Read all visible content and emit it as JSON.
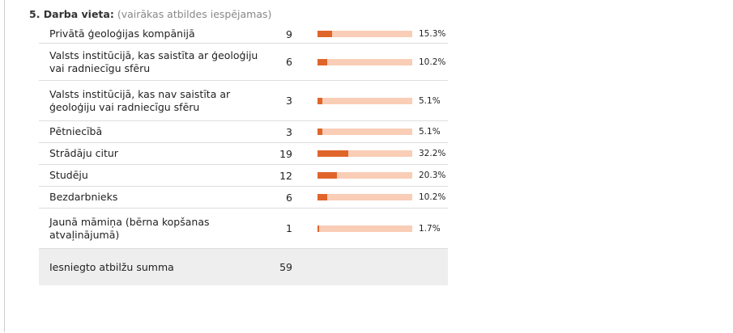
{
  "chart_data": {
    "type": "bar",
    "title": "5. Darba vieta:",
    "subtitle": "(vairākas atbildes iespējamas)",
    "categories": [
      "Privātā ģeoloģijas kompānijā",
      "Valsts institūcijā, kas saistīta ar ģeoloģiju vai radniecīgu sfēru",
      "Valsts institūcijā, kas nav saistīta ar ģeoloģiju vai radniecīgu sfēru",
      "Pētniecībā",
      "Strādāju citur",
      "Studēju",
      "Bezdarbnieks",
      "Jaunā māmiņa (bērna kopšanas atvaļinājumā)"
    ],
    "counts": [
      9,
      6,
      3,
      3,
      19,
      12,
      6,
      1
    ],
    "values": [
      15.3,
      10.2,
      5.1,
      5.1,
      32.2,
      20.3,
      10.2,
      1.7
    ],
    "value_labels": [
      "15.3%",
      "10.2%",
      "5.1%",
      "5.1%",
      "32.2%",
      "20.3%",
      "10.2%",
      "1.7%"
    ],
    "xlim": [
      0,
      100
    ],
    "color": "#e0652a",
    "track_color": "#f9cdb6",
    "total_label": "Iesniegto atbilžu summa",
    "total": 59
  }
}
